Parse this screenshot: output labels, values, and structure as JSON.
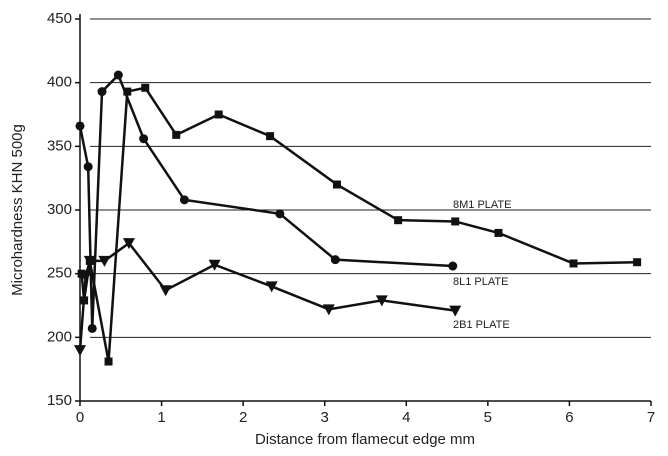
{
  "chart_data": {
    "type": "line",
    "xlabel": "Distance from flamecut edge    mm",
    "ylabel": "Microhardness  KHN 500g",
    "xlim": [
      0,
      7
    ],
    "xticks": [
      0,
      1,
      2,
      3,
      4,
      5,
      6,
      7
    ],
    "ylim": [
      150,
      450
    ],
    "yticks": [
      150,
      200,
      250,
      300,
      350,
      400,
      450
    ],
    "grid": true,
    "series": [
      {
        "name": "8M1 PLATE",
        "color": "#111111",
        "marker": "square",
        "x": [
          0.02,
          0.05,
          0.12,
          0.35,
          0.58,
          0.8,
          1.18,
          1.7,
          2.33,
          3.15,
          3.9,
          4.6,
          5.13,
          6.05,
          6.83
        ],
        "values": [
          250,
          229,
          260,
          181,
          393,
          396,
          359,
          375,
          358,
          320,
          292,
          291,
          282,
          258,
          259
        ]
      },
      {
        "name": "8L1 PLATE",
        "color": "#111111",
        "marker": "circle",
        "x": [
          0.0,
          0.1,
          0.15,
          0.27,
          0.47,
          0.78,
          1.28,
          2.45,
          3.13,
          4.57
        ],
        "values": [
          366,
          334,
          207,
          393,
          406,
          356,
          308,
          297,
          261,
          256
        ]
      },
      {
        "name": "2B1 PLATE",
        "color": "#111111",
        "marker": "triangle-down",
        "x": [
          0.0,
          0.07,
          0.12,
          0.3,
          0.6,
          1.05,
          1.65,
          2.35,
          3.05,
          3.7,
          4.6
        ],
        "values": [
          190,
          248,
          260,
          260,
          274,
          237,
          257,
          240,
          222,
          229,
          221
        ]
      }
    ]
  }
}
